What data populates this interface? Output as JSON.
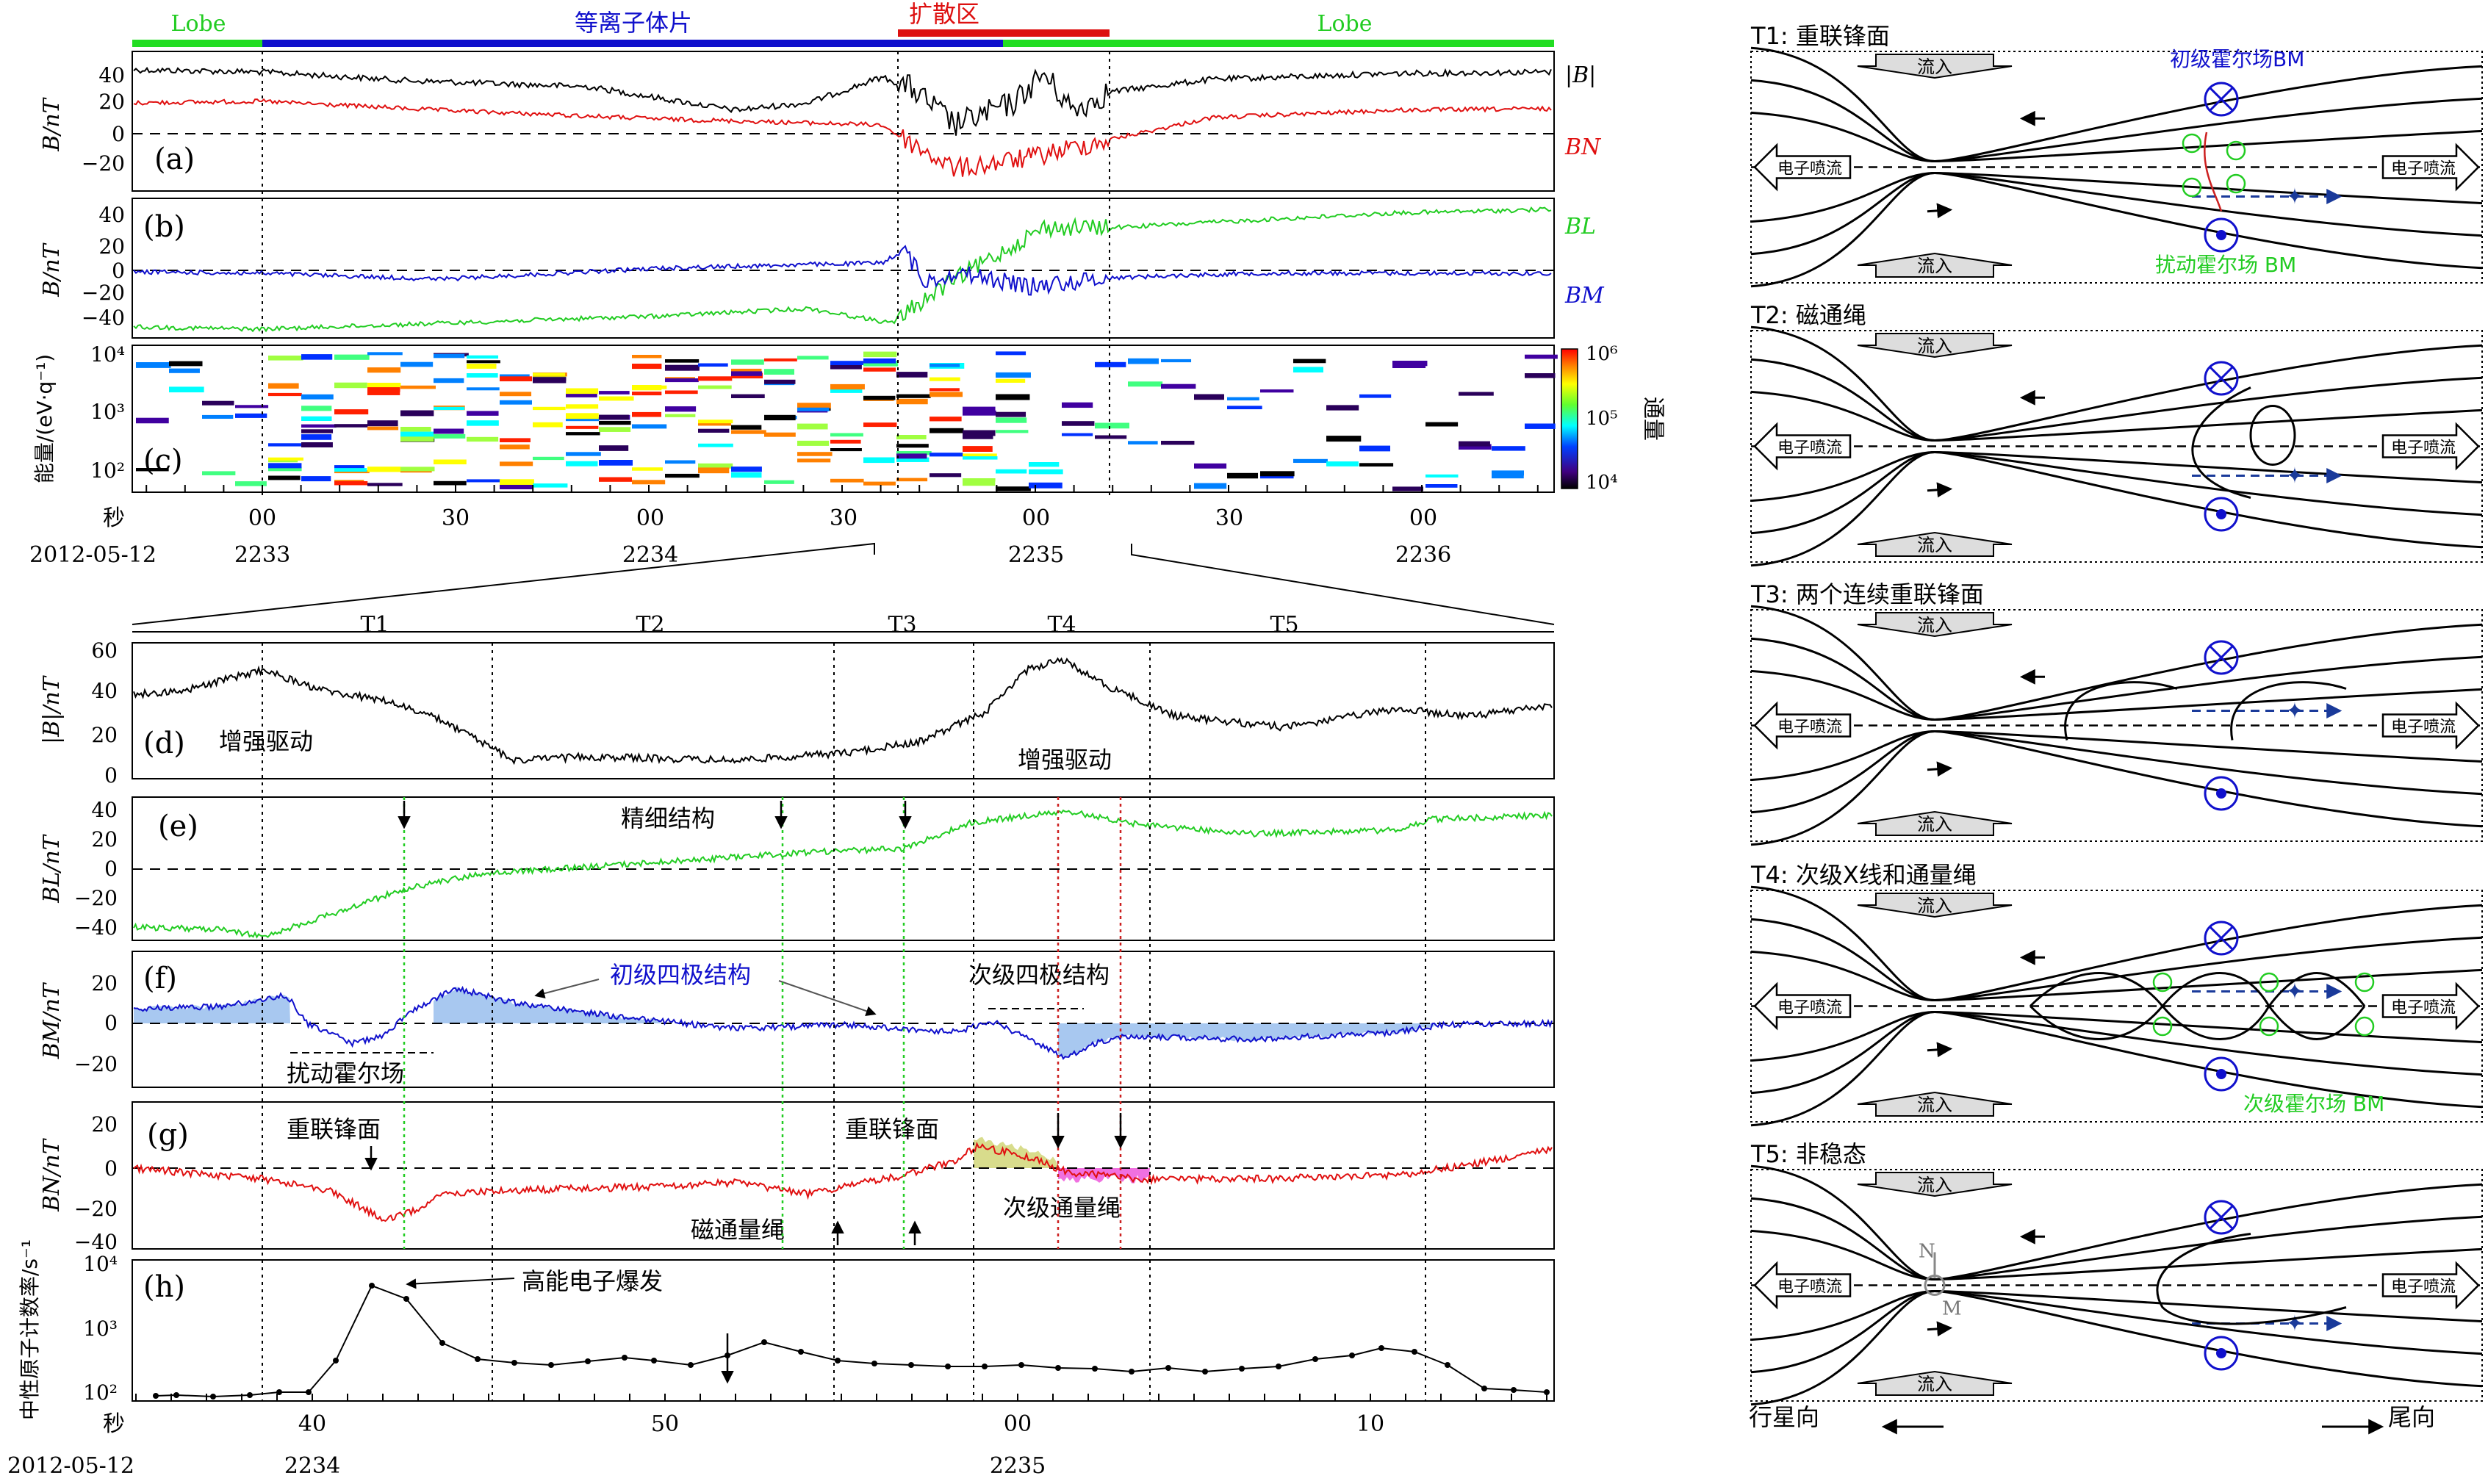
{
  "top_panels": {
    "regions": [
      {
        "label": "Lobe",
        "color": "#22dd22"
      },
      {
        "label": "等离子体片",
        "color": "#1010cc"
      },
      {
        "label": "扩散区",
        "color": "#dd1010"
      },
      {
        "label": "Lobe",
        "color": "#22dd22"
      }
    ],
    "a": {
      "tag": "(a)",
      "ylabel": "B/nT",
      "legend": [
        "|B|",
        "BN"
      ],
      "ticks": [
        "40",
        "20",
        "0",
        "−20"
      ]
    },
    "b": {
      "tag": "(b)",
      "ylabel": "B/nT",
      "legend": [
        "BL",
        "BM"
      ],
      "ticks": [
        "40",
        "20",
        "0",
        "−20",
        "−40"
      ]
    },
    "c": {
      "tag": "(c)",
      "ylabel": "能量/(eV·q⁻¹)",
      "ticks": [
        "10⁴",
        "10³",
        "10²"
      ],
      "colorbar_title": "通量",
      "colorbar_ticks": [
        "10⁶",
        "10⁵",
        "10⁴"
      ]
    },
    "time_axis": {
      "unit": "秒",
      "date": "2012-05-12",
      "ticks": [
        "00",
        "30",
        "00",
        "30",
        "00",
        "30",
        "00"
      ],
      "hours": [
        "2233",
        "2234",
        "2235",
        "2236"
      ]
    }
  },
  "bottom_panels": {
    "intervals": [
      "T1",
      "T2",
      "T3",
      "T4",
      "T5"
    ],
    "d": {
      "tag": "(d)",
      "ylabel": "|B|/nT",
      "ticks": [
        "60",
        "40",
        "20",
        "0"
      ],
      "annotations": [
        "增强驱动",
        "增强驱动"
      ]
    },
    "e": {
      "tag": "(e)",
      "ylabel": "BL/nT",
      "ticks": [
        "40",
        "20",
        "0",
        "−20",
        "−40"
      ],
      "annotations": [
        "精细结构"
      ]
    },
    "f": {
      "tag": "(f)",
      "ylabel": "BM/nT",
      "ticks": [
        "20",
        "0",
        "−20"
      ],
      "annotations": [
        "初级四极结构",
        "次级四极结构",
        "扰动霍尔场"
      ]
    },
    "g": {
      "tag": "(g)",
      "ylabel": "BN/nT",
      "ticks": [
        "20",
        "0",
        "−20",
        "−40"
      ],
      "annotations": [
        "重联锋面",
        "重联锋面",
        "磁通量绳",
        "次级通量绳"
      ]
    },
    "h": {
      "tag": "(h)",
      "ylabel": "中性原子计数率/s⁻¹",
      "ticks": [
        "10⁴",
        "10³",
        "10²"
      ],
      "annotations": [
        "高能电子爆发"
      ]
    },
    "time_axis": {
      "unit": "秒",
      "date": "2012-05-12",
      "ticks": [
        "40",
        "50",
        "00",
        "10"
      ],
      "hours": [
        "2234",
        "2235"
      ]
    }
  },
  "schematics": [
    {
      "title": "T1: 重联锋面",
      "labels": [
        "初级霍尔场BM",
        "扰动霍尔场 BM"
      ]
    },
    {
      "title": "T2: 磁通绳",
      "labels": []
    },
    {
      "title": "T3: 两个连续重联锋面",
      "labels": []
    },
    {
      "title": "T4: 次级X线和通量绳",
      "labels": [
        "次级霍尔场 BM"
      ]
    },
    {
      "title": "T5: 非稳态",
      "labels": [
        "N",
        "M"
      ]
    }
  ],
  "schematic_common": {
    "inflow": "流入",
    "outflow": "电子喷流"
  },
  "direction_labels": {
    "left": "行星向",
    "right": "尾向"
  }
}
